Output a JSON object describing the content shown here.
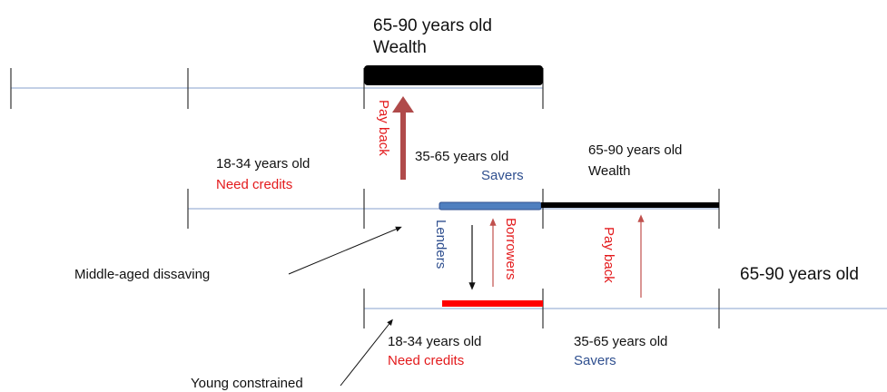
{
  "top": {
    "age": "65-90 years old",
    "status": "Wealth",
    "pay_back": "Pay back"
  },
  "middle": {
    "savers_age": "35-65 years old",
    "savers": "Savers",
    "wealth_age": "65-90 years old",
    "wealth": "Wealth",
    "young_age": "18-34 years old",
    "need_credits": "Need credits",
    "lenders": "Lenders",
    "borrowers": "Borrowers",
    "pay_back": "Pay back"
  },
  "bottom": {
    "wealth_age": "65-90 years old",
    "young_age": "18-34 years old",
    "need_credits": "Need credits",
    "savers_age": "35-65 years old",
    "savers": "Savers"
  },
  "annotations": {
    "middle_aged": "Middle-aged  dissaving",
    "young": "Young  constrained"
  }
}
